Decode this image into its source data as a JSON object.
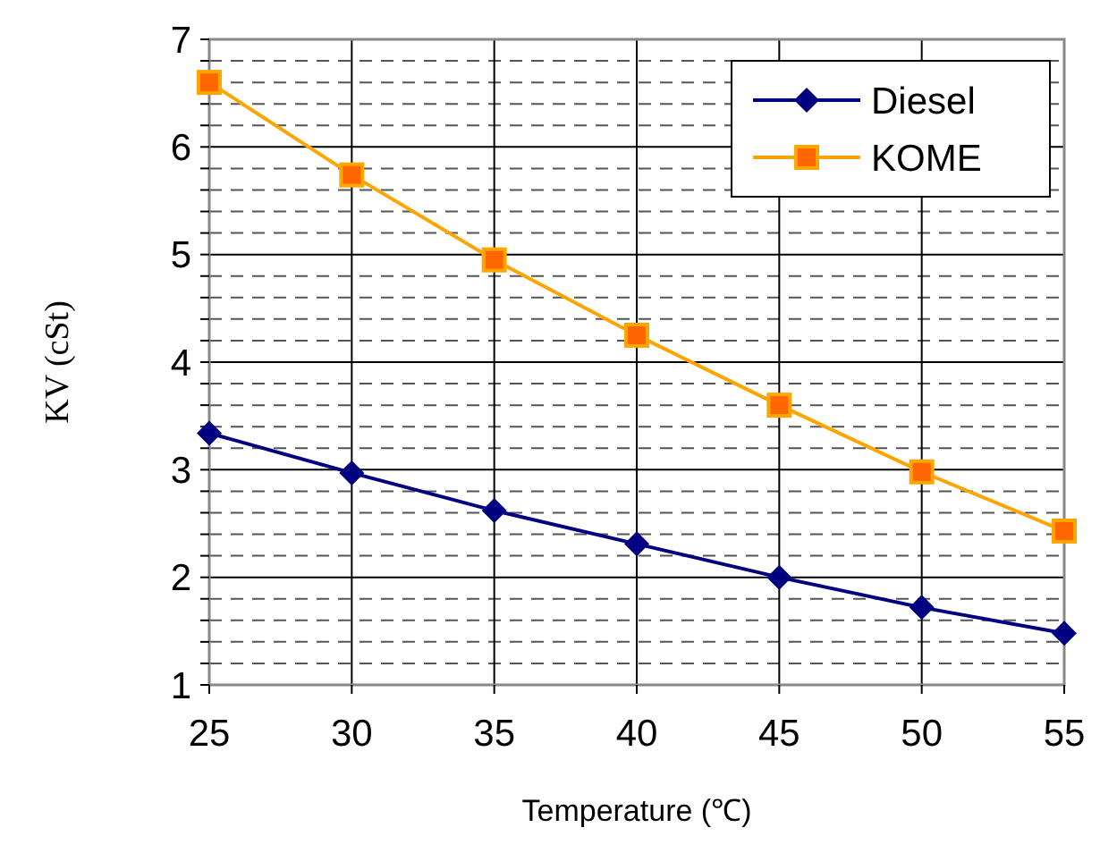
{
  "chart_data": {
    "type": "line",
    "xlabel": "Temperature (℃)",
    "ylabel": "KV (cSt)",
    "x": [
      25,
      30,
      35,
      40,
      45,
      50,
      55
    ],
    "series": [
      {
        "name": "Diesel",
        "color": "#000080",
        "marker": "diamond",
        "values": [
          3.34,
          2.97,
          2.62,
          2.31,
          2.0,
          1.72,
          1.48
        ]
      },
      {
        "name": "KOME",
        "color": "#ffa500",
        "marker": "square",
        "values": [
          6.6,
          5.74,
          4.95,
          4.25,
          3.6,
          2.98,
          2.43
        ]
      }
    ],
    "xlim": [
      25,
      55
    ],
    "xticks": [
      25,
      30,
      35,
      40,
      45,
      50,
      55
    ],
    "ylim": [
      1,
      7
    ],
    "yticks": [
      1,
      {
        "value": 1.2,
        "label": null
      },
      {
        "value": 1.4,
        "label": null
      },
      {
        "value": 1.6,
        "label": null
      },
      {
        "value": 1.8,
        "label": null
      },
      2,
      {
        "value": 2.2,
        "label": null
      },
      {
        "value": 2.4,
        "label": null
      },
      {
        "value": 2.6,
        "label": null
      },
      {
        "value": 2.8,
        "label": null
      },
      3,
      {
        "value": 3.2,
        "label": null
      },
      {
        "value": 3.4,
        "label": null
      },
      {
        "value": 3.6,
        "label": null
      },
      {
        "value": 3.8,
        "label": null
      },
      4,
      {
        "value": 4.2,
        "label": null
      },
      {
        "value": 4.4,
        "label": null
      },
      {
        "value": 4.6,
        "label": null
      },
      {
        "value": 4.8,
        "label": null
      },
      5,
      {
        "value": 5.2,
        "label": null
      },
      {
        "value": 5.4,
        "label": null
      },
      {
        "value": 5.6,
        "label": null
      },
      {
        "value": 5.8,
        "label": null
      },
      6,
      {
        "value": 6.2,
        "label": null
      },
      {
        "value": 6.4,
        "label": null
      },
      {
        "value": 6.6,
        "label": null
      },
      {
        "value": 6.8,
        "label": null
      },
      7
    ],
    "grid": true,
    "legend": "top right",
    "line_style": "solid"
  }
}
